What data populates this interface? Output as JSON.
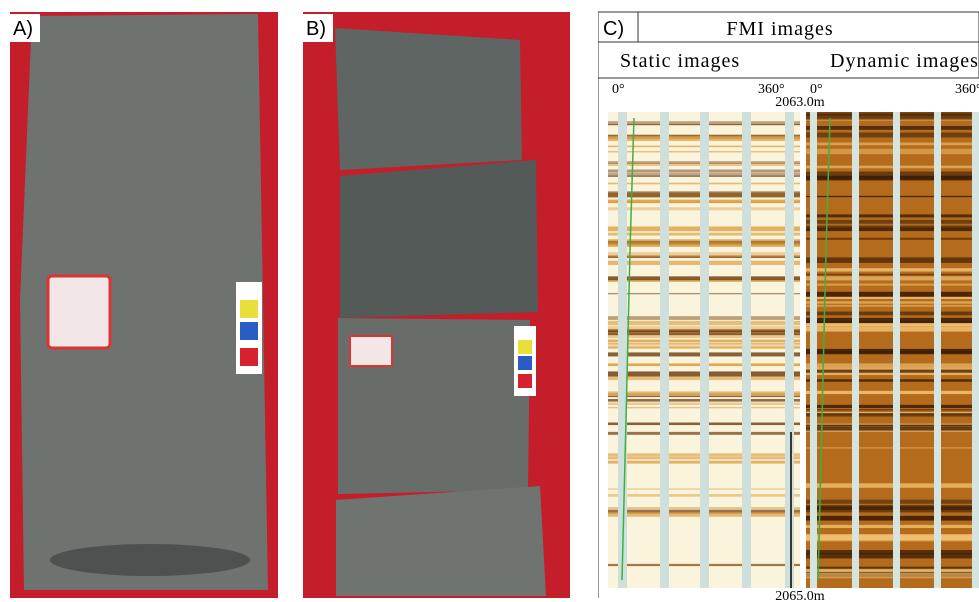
{
  "panels": {
    "a": {
      "label": "A)"
    },
    "b": {
      "label": "B)"
    },
    "c": {
      "label": "C)",
      "title": "FMI images",
      "static_title": "Static images",
      "dynamic_title": "Dynamic images",
      "static_start": "0°",
      "static_end": "360°",
      "dynamic_start": "0°",
      "dynamic_end": "360°",
      "depth_top": "2063.0m",
      "depth_bottom": "2065.0m"
    }
  }
}
